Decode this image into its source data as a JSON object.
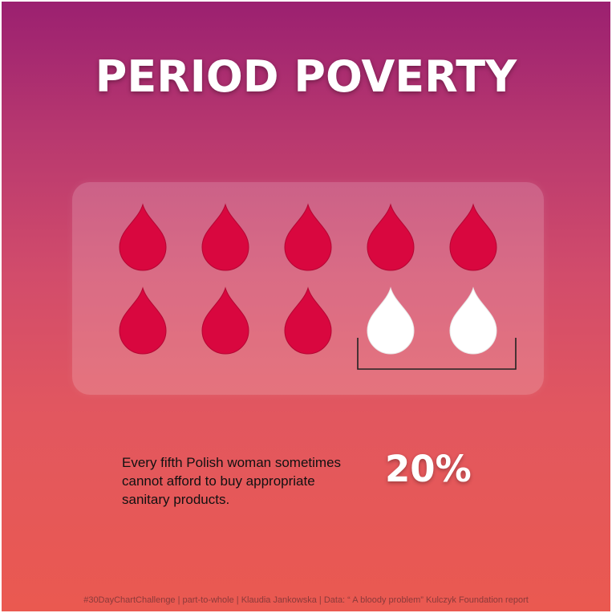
{
  "title": "PERIOD POVERTY",
  "chart_data": {
    "type": "pictogram",
    "icon": "blood-drop-icon",
    "total_units": 10,
    "units_per_row": 5,
    "highlighted_units": 2,
    "filled_color": "#d9073f",
    "highlight_color": "#ffffff",
    "highlighted_share_percent": 20
  },
  "statement": {
    "lines": [
      "Every fifth Polish woman sometimes",
      "cannot afford to buy appropriate",
      "sanitary products."
    ],
    "value": "20%"
  },
  "footer": "#30DayChartChallenge  |  part-to-whole  |  Klaudia Jankowska  |  Data: “ A bloody problem” Kulczyk Foundation report",
  "colors": {
    "background_top": "#9b2070",
    "background_bottom": "#ea5950",
    "drop_red": "#d9073f",
    "drop_white": "#ffffff",
    "bracket": "#222222"
  }
}
